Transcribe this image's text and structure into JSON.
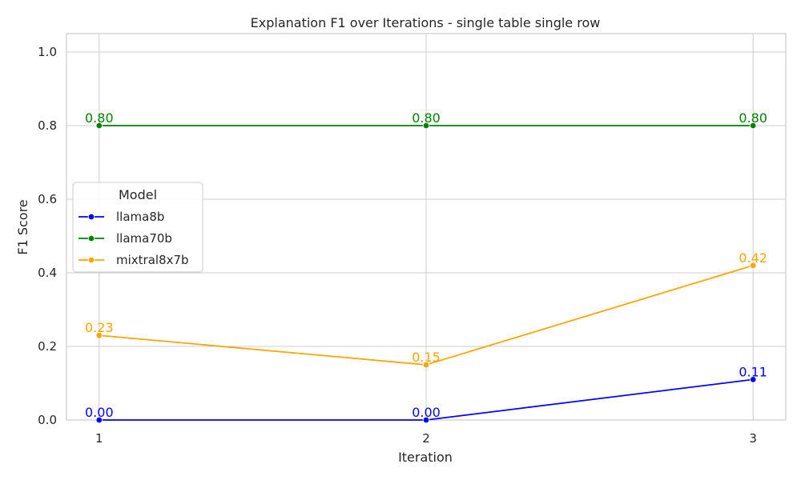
{
  "chart_data": {
    "type": "line",
    "title": "Explanation F1 over Iterations - single table single row",
    "xlabel": "Iteration",
    "ylabel": "F1 Score",
    "x": [
      1,
      2,
      3
    ],
    "x_tick_labels": [
      "1",
      "2",
      "3"
    ],
    "xlim": [
      0.9,
      3.1
    ],
    "ylim": [
      0,
      1.05
    ],
    "y_ticks": [
      0.0,
      0.2,
      0.4,
      0.6,
      0.8,
      1.0
    ],
    "y_tick_labels": [
      "0.0",
      "0.2",
      "0.4",
      "0.6",
      "0.8",
      "1.0"
    ],
    "grid": true,
    "legend": {
      "title": "Model",
      "placement": "center-left"
    },
    "series": [
      {
        "name": "llama8b",
        "color": "#0000ff",
        "values": [
          0.0,
          0.0,
          0.11
        ],
        "labels": [
          "0.00",
          "0.00",
          "0.11"
        ]
      },
      {
        "name": "llama70b",
        "color": "#008000",
        "values": [
          0.8,
          0.8,
          0.8
        ],
        "labels": [
          "0.80",
          "0.80",
          "0.80"
        ]
      },
      {
        "name": "mixtral8x7b",
        "color": "#ffa500",
        "values": [
          0.23,
          0.15,
          0.42
        ],
        "labels": [
          "0.23",
          "0.15",
          "0.42"
        ]
      }
    ]
  }
}
